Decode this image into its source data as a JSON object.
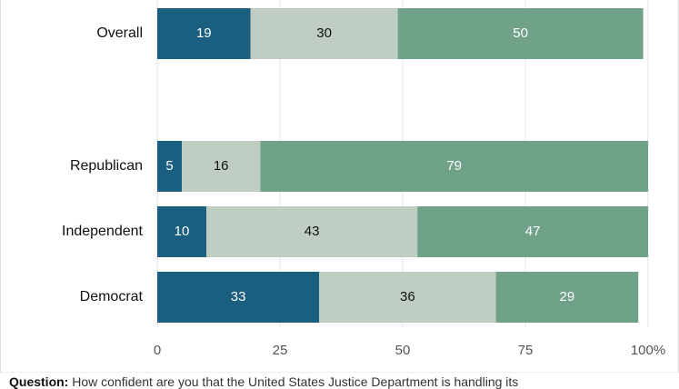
{
  "chart_data": {
    "type": "bar",
    "orientation": "horizontal",
    "stacked": true,
    "categories": [
      "Overall",
      "Republican",
      "Independent",
      "Democrat"
    ],
    "series": [
      {
        "values": [
          19,
          5,
          10,
          33
        ],
        "color": "#1a5e80",
        "label_color": "#ffffff"
      },
      {
        "values": [
          30,
          16,
          43,
          36
        ],
        "color": "#bfcdc3",
        "label_color": "#111111"
      },
      {
        "values": [
          50,
          79,
          47,
          29
        ],
        "color": "#6fa288",
        "label_color": "#ffffff"
      }
    ],
    "xlim": [
      0,
      100
    ],
    "xticks": [
      0,
      25,
      50,
      75,
      100
    ],
    "xtick_labels": [
      "0",
      "25",
      "50",
      "75",
      "100%"
    ],
    "grid": true
  },
  "footnote": {
    "label": "Question:",
    "text": " How confident are you that the United States Justice Department is handling its"
  }
}
